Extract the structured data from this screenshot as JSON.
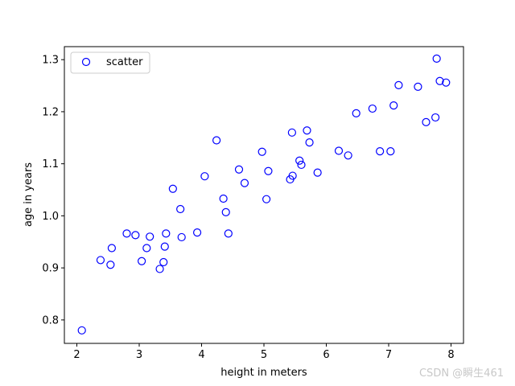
{
  "chart_data": {
    "type": "scatter",
    "xlabel": "height in meters",
    "ylabel": "age in years",
    "xlim": [
      1.8,
      8.2
    ],
    "ylim": [
      0.755,
      1.325
    ],
    "x_ticks": [
      2,
      3,
      4,
      5,
      6,
      7,
      8
    ],
    "y_ticks": [
      0.8,
      0.9,
      1.0,
      1.1,
      1.2,
      1.3
    ],
    "y_tick_labels": [
      "0.8",
      "0.9",
      "1.0",
      "1.1",
      "1.2",
      "1.3"
    ],
    "legend": {
      "position": "upper-left",
      "entries": [
        "scatter"
      ]
    },
    "grid": false,
    "marker": {
      "shape": "open-circle",
      "color": "#0000ff"
    },
    "series": [
      {
        "name": "scatter",
        "points": [
          [
            2.08,
            0.78
          ],
          [
            2.38,
            0.915
          ],
          [
            2.54,
            0.906
          ],
          [
            2.56,
            0.938
          ],
          [
            2.8,
            0.966
          ],
          [
            2.94,
            0.963
          ],
          [
            3.04,
            0.913
          ],
          [
            3.12,
            0.938
          ],
          [
            3.17,
            0.96
          ],
          [
            3.33,
            0.898
          ],
          [
            3.39,
            0.911
          ],
          [
            3.41,
            0.941
          ],
          [
            3.43,
            0.966
          ],
          [
            3.54,
            1.052
          ],
          [
            3.66,
            1.013
          ],
          [
            3.68,
            0.959
          ],
          [
            3.93,
            0.968
          ],
          [
            4.05,
            1.076
          ],
          [
            4.24,
            1.145
          ],
          [
            4.35,
            1.033
          ],
          [
            4.39,
            1.007
          ],
          [
            4.43,
            0.966
          ],
          [
            4.6,
            1.089
          ],
          [
            4.69,
            1.063
          ],
          [
            4.97,
            1.123
          ],
          [
            5.04,
            1.032
          ],
          [
            5.07,
            1.086
          ],
          [
            5.42,
            1.07
          ],
          [
            5.45,
            1.16
          ],
          [
            5.46,
            1.077
          ],
          [
            5.57,
            1.106
          ],
          [
            5.6,
            1.098
          ],
          [
            5.69,
            1.164
          ],
          [
            5.73,
            1.141
          ],
          [
            5.86,
            1.083
          ],
          [
            6.2,
            1.125
          ],
          [
            6.35,
            1.116
          ],
          [
            6.48,
            1.197
          ],
          [
            6.74,
            1.206
          ],
          [
            6.86,
            1.124
          ],
          [
            7.03,
            1.124
          ],
          [
            7.08,
            1.212
          ],
          [
            7.16,
            1.251
          ],
          [
            7.47,
            1.248
          ],
          [
            7.6,
            1.18
          ],
          [
            7.75,
            1.189
          ],
          [
            7.77,
            1.302
          ],
          [
            7.82,
            1.259
          ],
          [
            7.92,
            1.256
          ]
        ]
      }
    ]
  },
  "watermark": "CSDN @瞬生461"
}
